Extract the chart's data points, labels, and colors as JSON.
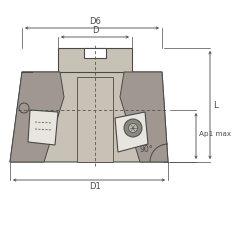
{
  "bg_color": "#ffffff",
  "line_color": "#4a4a4a",
  "fill_body": "#c8c2b6",
  "fill_dark": "#a09890",
  "fill_insert": "#d5cfc5",
  "fill_white": "#e8e4de",
  "labels": {
    "D6": "D6",
    "D": "D",
    "D1": "D1",
    "L": "L",
    "Ap1max": "Ap1 max",
    "angle": "90°"
  },
  "figsize": [
    2.4,
    2.4
  ],
  "dpi": 100
}
